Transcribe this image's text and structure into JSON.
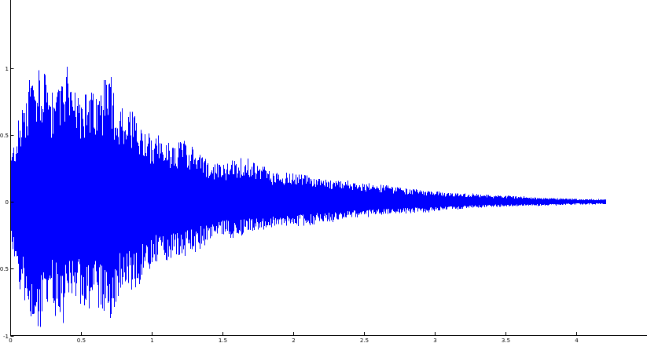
{
  "chart_data": {
    "type": "line",
    "title": "",
    "xlabel": "",
    "ylabel": "",
    "xlim": [
      0,
      4.5
    ],
    "ylim": [
      -1,
      1.5
    ],
    "grid": false,
    "legend": "none",
    "series_color": "#0000ff",
    "x_ticks": [
      {
        "value": 0,
        "label": "0"
      },
      {
        "value": 0.5,
        "label": "0.5"
      },
      {
        "value": 1,
        "label": "1"
      },
      {
        "value": 1.5,
        "label": "1.5"
      },
      {
        "value": 2,
        "label": "2"
      },
      {
        "value": 2.5,
        "label": "2.5"
      },
      {
        "value": 3,
        "label": "3"
      },
      {
        "value": 3.5,
        "label": "3.5"
      },
      {
        "value": 4,
        "label": "4"
      }
    ],
    "y_ticks": [
      {
        "value": 1,
        "label": "1"
      },
      {
        "value": 0.5,
        "label": "0.5"
      },
      {
        "value": 0,
        "label": "0"
      },
      {
        "value": -0.5,
        "label": "-0.5"
      },
      {
        "value": -1,
        "label": "-1"
      }
    ],
    "envelope": {
      "x": [
        0,
        0.05,
        0.1,
        0.15,
        0.2,
        0.25,
        0.3,
        0.35,
        0.4,
        0.45,
        0.5,
        0.55,
        0.6,
        0.65,
        0.7,
        0.75,
        0.8,
        0.85,
        0.9,
        0.95,
        1.0,
        1.1,
        1.2,
        1.3,
        1.4,
        1.5,
        1.6,
        1.7,
        1.8,
        1.9,
        2.0,
        2.2,
        2.4,
        2.6,
        2.8,
        3.0,
        3.2,
        3.4,
        3.6,
        3.8,
        4.0,
        4.2
      ],
      "upper": [
        0.35,
        0.6,
        0.85,
        0.95,
        1.0,
        0.95,
        0.8,
        0.9,
        1.05,
        0.75,
        0.8,
        0.85,
        0.8,
        0.9,
        0.95,
        0.75,
        0.6,
        0.7,
        0.65,
        0.55,
        0.5,
        0.45,
        0.45,
        0.4,
        0.3,
        0.28,
        0.32,
        0.3,
        0.25,
        0.2,
        0.22,
        0.17,
        0.15,
        0.12,
        0.1,
        0.07,
        0.06,
        0.05,
        0.04,
        0.03,
        0.02,
        0.02
      ],
      "lower": [
        -0.3,
        -0.6,
        -0.8,
        -0.9,
        -0.95,
        -0.85,
        -0.75,
        -0.9,
        -0.8,
        -0.7,
        -0.75,
        -0.85,
        -0.8,
        -0.85,
        -0.95,
        -0.75,
        -0.6,
        -0.65,
        -0.65,
        -0.5,
        -0.45,
        -0.45,
        -0.4,
        -0.35,
        -0.28,
        -0.25,
        -0.25,
        -0.22,
        -0.2,
        -0.18,
        -0.18,
        -0.15,
        -0.12,
        -0.1,
        -0.08,
        -0.07,
        -0.05,
        -0.04,
        -0.03,
        -0.03,
        -0.02,
        -0.02
      ]
    }
  }
}
